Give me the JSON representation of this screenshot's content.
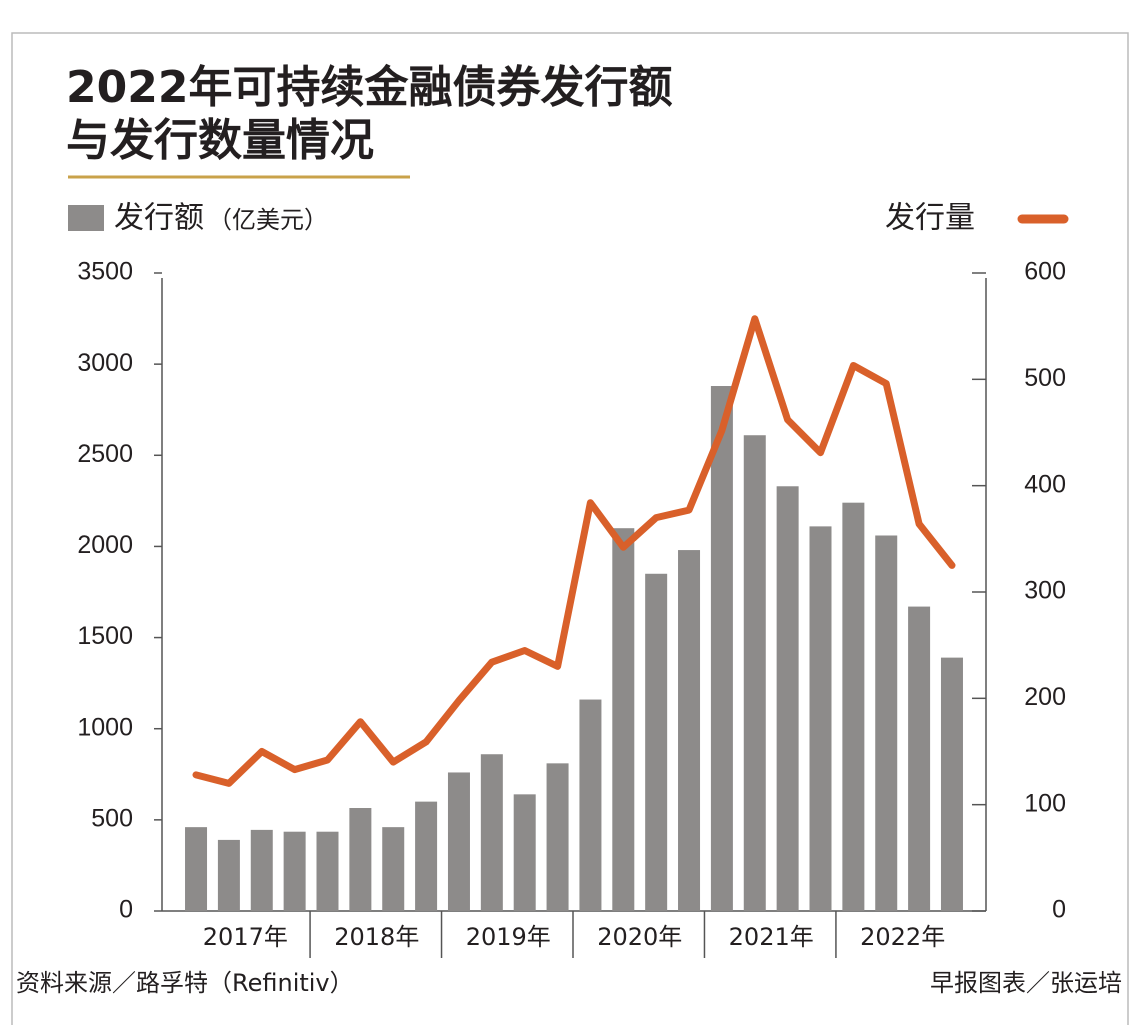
{
  "chart_data": {
    "type": "bar-line",
    "title": [
      "2022年可持续金融债券发行额",
      "与发行数量情况"
    ],
    "y_label": "（亿美元）",
    "categories": [
      null,
      null,
      null,
      null,
      null,
      null,
      null,
      null,
      null,
      null,
      null,
      null,
      null,
      null,
      null,
      null,
      null,
      null,
      null,
      null,
      null,
      null,
      null,
      null
    ],
    "x_groups": [
      "2017年",
      "2018年",
      "2019年",
      "2020年",
      "2021年",
      "2022年"
    ],
    "series": [
      {
        "name": "发行额",
        "type": "bar",
        "color": "#8d8b8a",
        "values": [
          460,
          390,
          445,
          435,
          435,
          565,
          460,
          600,
          760,
          860,
          640,
          810,
          1160,
          2100,
          1850,
          1980,
          2880,
          2610,
          2330,
          2110,
          2240,
          2060,
          1670,
          1390
        ]
      },
      {
        "name": "发行量",
        "type": "line",
        "axis": "y2",
        "color": "#d9602a",
        "values": [
          128,
          120,
          150,
          133,
          142,
          178,
          140,
          159,
          198,
          234,
          245,
          230,
          384,
          342,
          370,
          377,
          452,
          557,
          462,
          431,
          513,
          496,
          364,
          325
        ]
      }
    ],
    "ylim": [
      0,
      3500
    ],
    "yticks": [
      0,
      500,
      1000,
      1500,
      2000,
      2500,
      3000,
      3500
    ],
    "y2lim": [
      0,
      600
    ],
    "y2ticks": [
      0,
      100,
      200,
      300,
      400,
      500,
      600
    ],
    "source": "资料来源／路孚特（Refinitiv）",
    "credit": "早报图表／张运培"
  }
}
